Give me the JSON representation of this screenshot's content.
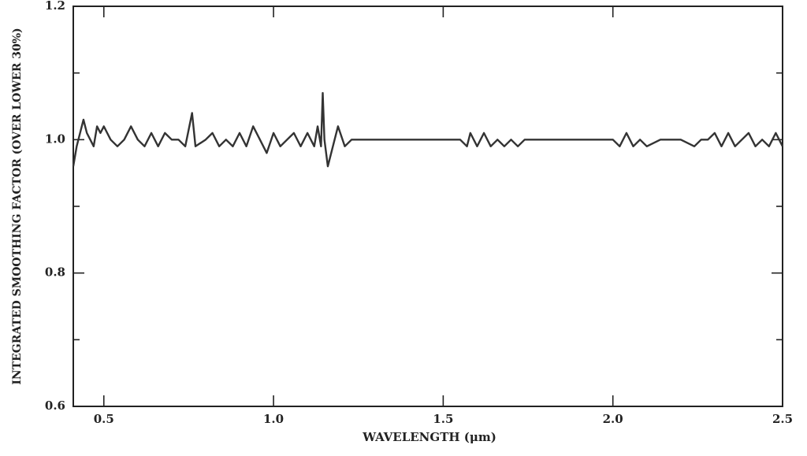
{
  "chart_data": {
    "type": "line",
    "xlabel": "WAVELENGTH (μm)",
    "ylabel": "INTEGRATED SMOOTHING FACTOR (OVER LOWER 30%)",
    "color": "#333333",
    "xlim": [
      0.41,
      2.5
    ],
    "ylim": [
      0.6,
      1.2
    ],
    "xticks": [
      0.5,
      {
        "value": 1,
        "label": "1.0"
      },
      1.5,
      {
        "value": 2,
        "label": "2.0"
      },
      2.5
    ],
    "yticks": [
      0.6,
      0.8,
      {
        "value": 1,
        "label": "1.0"
      },
      1.2
    ],
    "yminorticks": [
      0.7,
      0.9,
      1.1
    ],
    "x": [
      0.41,
      0.42,
      0.43,
      0.44,
      0.45,
      0.46,
      0.47,
      0.48,
      0.49,
      0.5,
      0.51,
      0.52,
      0.54,
      0.56,
      0.58,
      0.6,
      0.62,
      0.64,
      0.66,
      0.68,
      0.7,
      0.72,
      0.74,
      0.76,
      0.77,
      0.8,
      0.82,
      0.84,
      0.86,
      0.88,
      0.9,
      0.92,
      0.94,
      0.96,
      0.98,
      1.0,
      1.02,
      1.04,
      1.06,
      1.08,
      1.1,
      1.12,
      1.13,
      1.14,
      1.145,
      1.15,
      1.16,
      1.18,
      1.19,
      1.21,
      1.23,
      1.25,
      1.3,
      1.4,
      1.5,
      1.55,
      1.57,
      1.58,
      1.6,
      1.62,
      1.64,
      1.66,
      1.68,
      1.7,
      1.72,
      1.74,
      1.8,
      1.9,
      2.0,
      2.02,
      2.04,
      2.06,
      2.08,
      2.1,
      2.14,
      2.2,
      2.24,
      2.26,
      2.28,
      2.3,
      2.32,
      2.34,
      2.36,
      2.38,
      2.4,
      2.42,
      2.44,
      2.46,
      2.48,
      2.5
    ],
    "values": [
      0.96,
      0.99,
      1.01,
      1.03,
      1.01,
      1.0,
      0.99,
      1.02,
      1.01,
      1.02,
      1.01,
      1.0,
      0.99,
      1.0,
      1.02,
      1.0,
      0.99,
      1.01,
      0.99,
      1.01,
      1.0,
      1.0,
      0.99,
      1.04,
      0.99,
      1.0,
      1.01,
      0.99,
      1.0,
      0.99,
      1.01,
      0.99,
      1.02,
      1.0,
      0.98,
      1.01,
      0.99,
      1.0,
      1.01,
      0.99,
      1.01,
      0.99,
      1.02,
      0.99,
      1.07,
      1.0,
      0.96,
      1.0,
      1.02,
      0.99,
      1.0,
      1.0,
      1.0,
      1.0,
      1.0,
      1.0,
      0.99,
      1.01,
      0.99,
      1.01,
      0.99,
      1.0,
      0.99,
      1.0,
      0.99,
      1.0,
      1.0,
      1.0,
      1.0,
      0.99,
      1.01,
      0.99,
      1.0,
      0.99,
      1.0,
      1.0,
      0.99,
      1.0,
      1.0,
      1.01,
      0.99,
      1.01,
      0.99,
      1.0,
      1.01,
      0.99,
      1.0,
      0.99,
      1.01,
      0.99
    ]
  }
}
